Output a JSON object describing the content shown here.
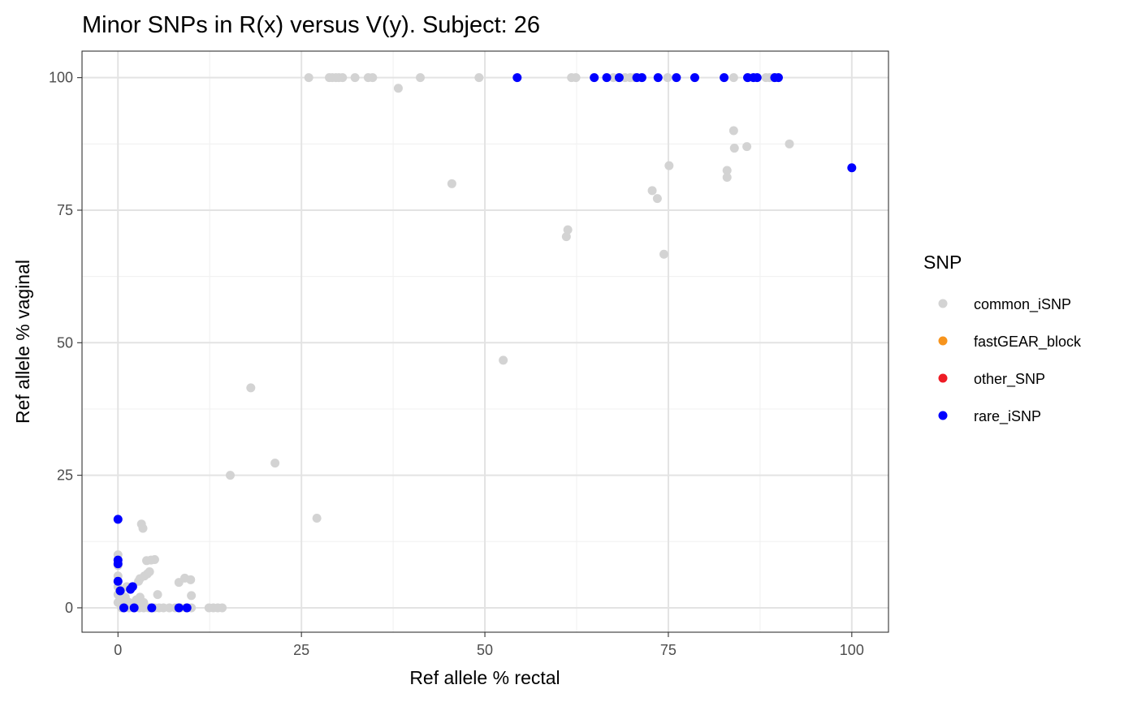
{
  "chart_data": {
    "type": "scatter",
    "title": "Minor SNPs in R(x) versus V(y). Subject: 26",
    "xlabel": "Ref allele % rectal",
    "ylabel": "Ref allele % vaginal",
    "xlim": [
      -4.9,
      105
    ],
    "ylim": [
      -4.6,
      105
    ],
    "xticks": [
      0,
      25,
      50,
      75,
      100
    ],
    "yticks": [
      0,
      25,
      50,
      75,
      100
    ],
    "xtick_labels": [
      "0",
      "25",
      "50",
      "75",
      "100"
    ],
    "ytick_labels": [
      "0",
      "25",
      "50",
      "75",
      "100"
    ],
    "grid": true,
    "legend": {
      "title": "SNP",
      "placement": "right",
      "entries": [
        {
          "label": "common_iSNP",
          "color": "#d3d3d3"
        },
        {
          "label": "fastGEAR_block",
          "color": "#f7941d"
        },
        {
          "label": "other_SNP",
          "color": "#ee1c25"
        },
        {
          "label": "rare_iSNP",
          "color": "#0000ff"
        }
      ]
    },
    "series": [
      {
        "name": "common_iSNP",
        "color": "#d3d3d3",
        "points": [
          [
            26,
            100
          ],
          [
            28.8,
            100
          ],
          [
            29.2,
            100
          ],
          [
            29.7,
            100
          ],
          [
            30.1,
            100
          ],
          [
            30.6,
            100
          ],
          [
            32.3,
            100
          ],
          [
            34.1,
            100
          ],
          [
            34.7,
            100
          ],
          [
            41.2,
            100
          ],
          [
            49.2,
            100
          ],
          [
            61.8,
            100
          ],
          [
            62.4,
            100
          ],
          [
            67.5,
            100
          ],
          [
            69.1,
            100
          ],
          [
            69.8,
            100
          ],
          [
            70.4,
            100
          ],
          [
            74.9,
            100
          ],
          [
            83.9,
            100
          ],
          [
            85.9,
            100
          ],
          [
            88.3,
            100
          ],
          [
            88.8,
            100
          ],
          [
            89.4,
            100
          ],
          [
            38.2,
            98
          ],
          [
            45.5,
            80
          ],
          [
            52.5,
            46.7
          ],
          [
            61.1,
            70
          ],
          [
            61.3,
            71.3
          ],
          [
            72.8,
            78.7
          ],
          [
            73.5,
            77.2
          ],
          [
            74.4,
            66.7
          ],
          [
            75.1,
            83.4
          ],
          [
            83,
            82.5
          ],
          [
            83,
            81.2
          ],
          [
            83.9,
            90
          ],
          [
            84,
            86.7
          ],
          [
            85.7,
            87
          ],
          [
            91.5,
            87.5
          ],
          [
            18.1,
            41.5
          ],
          [
            21.4,
            27.3
          ],
          [
            15.3,
            25
          ],
          [
            27.1,
            16.9
          ],
          [
            3.2,
            15.8
          ],
          [
            3.4,
            15
          ],
          [
            0,
            10
          ],
          [
            0,
            8
          ],
          [
            0,
            6
          ],
          [
            0,
            4
          ],
          [
            0,
            2.5
          ],
          [
            0,
            1
          ],
          [
            0.4,
            3
          ],
          [
            0.6,
            1.5
          ],
          [
            1,
            2
          ],
          [
            1.5,
            1
          ],
          [
            2,
            0.5
          ],
          [
            2.5,
            1.5
          ],
          [
            3,
            2
          ],
          [
            3.5,
            1
          ],
          [
            1.2,
            4
          ],
          [
            2.8,
            5
          ],
          [
            3,
            5.5
          ],
          [
            3.6,
            6
          ],
          [
            4,
            6.4
          ],
          [
            4.3,
            6.8
          ],
          [
            3.9,
            8.9
          ],
          [
            4.5,
            9
          ],
          [
            5,
            9.1
          ],
          [
            8.3,
            4.8
          ],
          [
            9.1,
            5.6
          ],
          [
            9.9,
            5.3
          ],
          [
            5.4,
            2.5
          ],
          [
            10,
            2.3
          ],
          [
            0.5,
            0
          ],
          [
            1.5,
            0
          ],
          [
            2.2,
            0
          ],
          [
            2.9,
            0
          ],
          [
            3.5,
            0
          ],
          [
            4.2,
            0
          ],
          [
            5,
            0
          ],
          [
            5.6,
            0
          ],
          [
            6.2,
            0
          ],
          [
            7,
            0
          ],
          [
            7.8,
            0
          ],
          [
            8.5,
            0
          ],
          [
            9.3,
            0
          ],
          [
            10,
            0
          ],
          [
            12.4,
            0
          ],
          [
            13,
            0
          ],
          [
            13.6,
            0
          ],
          [
            14.2,
            0
          ]
        ]
      },
      {
        "name": "fastGEAR_block",
        "color": "#f7941d",
        "points": []
      },
      {
        "name": "other_SNP",
        "color": "#ee1c25",
        "points": []
      },
      {
        "name": "rare_iSNP",
        "color": "#0000ff",
        "points": [
          [
            54.4,
            100
          ],
          [
            64.9,
            100
          ],
          [
            66.6,
            100
          ],
          [
            68.3,
            100
          ],
          [
            70.7,
            100
          ],
          [
            71.4,
            100
          ],
          [
            73.6,
            100
          ],
          [
            76.1,
            100
          ],
          [
            78.6,
            100
          ],
          [
            82.6,
            100
          ],
          [
            85.8,
            100
          ],
          [
            86.6,
            100
          ],
          [
            87.1,
            100
          ],
          [
            89.5,
            100
          ],
          [
            90,
            100
          ],
          [
            100,
            83
          ],
          [
            0,
            16.7
          ],
          [
            0,
            9
          ],
          [
            0,
            8.3
          ],
          [
            0,
            5
          ],
          [
            0.3,
            3.2
          ],
          [
            1.7,
            3.5
          ],
          [
            2,
            4
          ],
          [
            0.8,
            0
          ],
          [
            2.2,
            0
          ],
          [
            4.6,
            0
          ],
          [
            8.3,
            0
          ],
          [
            9.4,
            0
          ]
        ]
      }
    ]
  }
}
